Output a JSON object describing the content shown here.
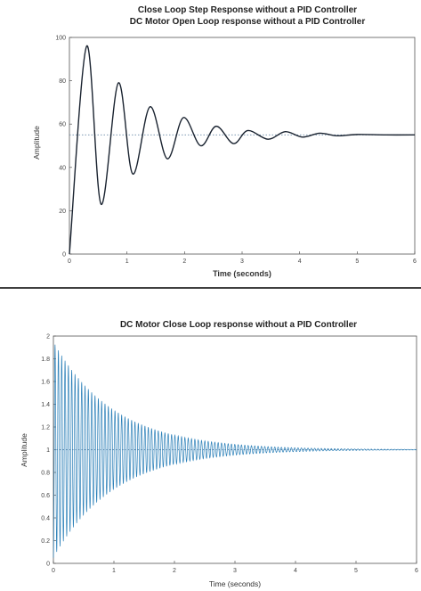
{
  "chart_data": [
    {
      "type": "line",
      "title": "Close Loop Step Response without a PID Controller",
      "subtitle": "DC Motor Open Loop response without a PID Controller",
      "xlabel": "Time (seconds)",
      "ylabel": "Amplitude",
      "xlim": [
        0,
        6
      ],
      "ylim": [
        0,
        100
      ],
      "xticks": [
        0,
        1,
        2,
        3,
        4,
        5,
        6
      ],
      "yticks": [
        0,
        20,
        40,
        60,
        80,
        100
      ],
      "reference_line": {
        "y": 55,
        "style": "dotted"
      },
      "series": [
        {
          "x": [
            0,
            0.3,
            0.55,
            0.85,
            1.1,
            1.4,
            1.7,
            1.98,
            2.28,
            2.55,
            2.85,
            3.1,
            3.45,
            3.75,
            4.05,
            4.35,
            4.65,
            5.0,
            5.5,
            6.0
          ],
          "y": [
            0,
            96,
            23,
            79,
            37,
            68,
            44,
            63,
            50,
            59,
            51,
            57,
            53,
            56.5,
            54,
            55.8,
            54.6,
            55.2,
            55,
            55
          ],
          "color": "#1a2330"
        }
      ],
      "grid": false
    },
    {
      "type": "line",
      "title": "DC Motor Close Loop response without a PID Controller",
      "xlabel": "Time (seconds)",
      "ylabel": "Amplitude",
      "xlim": [
        0,
        6
      ],
      "ylim": [
        0,
        2
      ],
      "xticks": [
        0,
        1,
        2,
        3,
        4,
        5,
        6
      ],
      "yticks": [
        0,
        0.2,
        0.4,
        0.6,
        0.8,
        1,
        1.2,
        1.4,
        1.6,
        1.8,
        2
      ],
      "reference_line": {
        "y": 1,
        "style": "dotted"
      },
      "series": [
        {
          "final_value": 1,
          "initial_peak": 1.95,
          "decay_time_constant_s": 1.0,
          "oscillation_period_s": 0.055,
          "color": "#2a7fb8"
        }
      ],
      "grid": false
    }
  ]
}
